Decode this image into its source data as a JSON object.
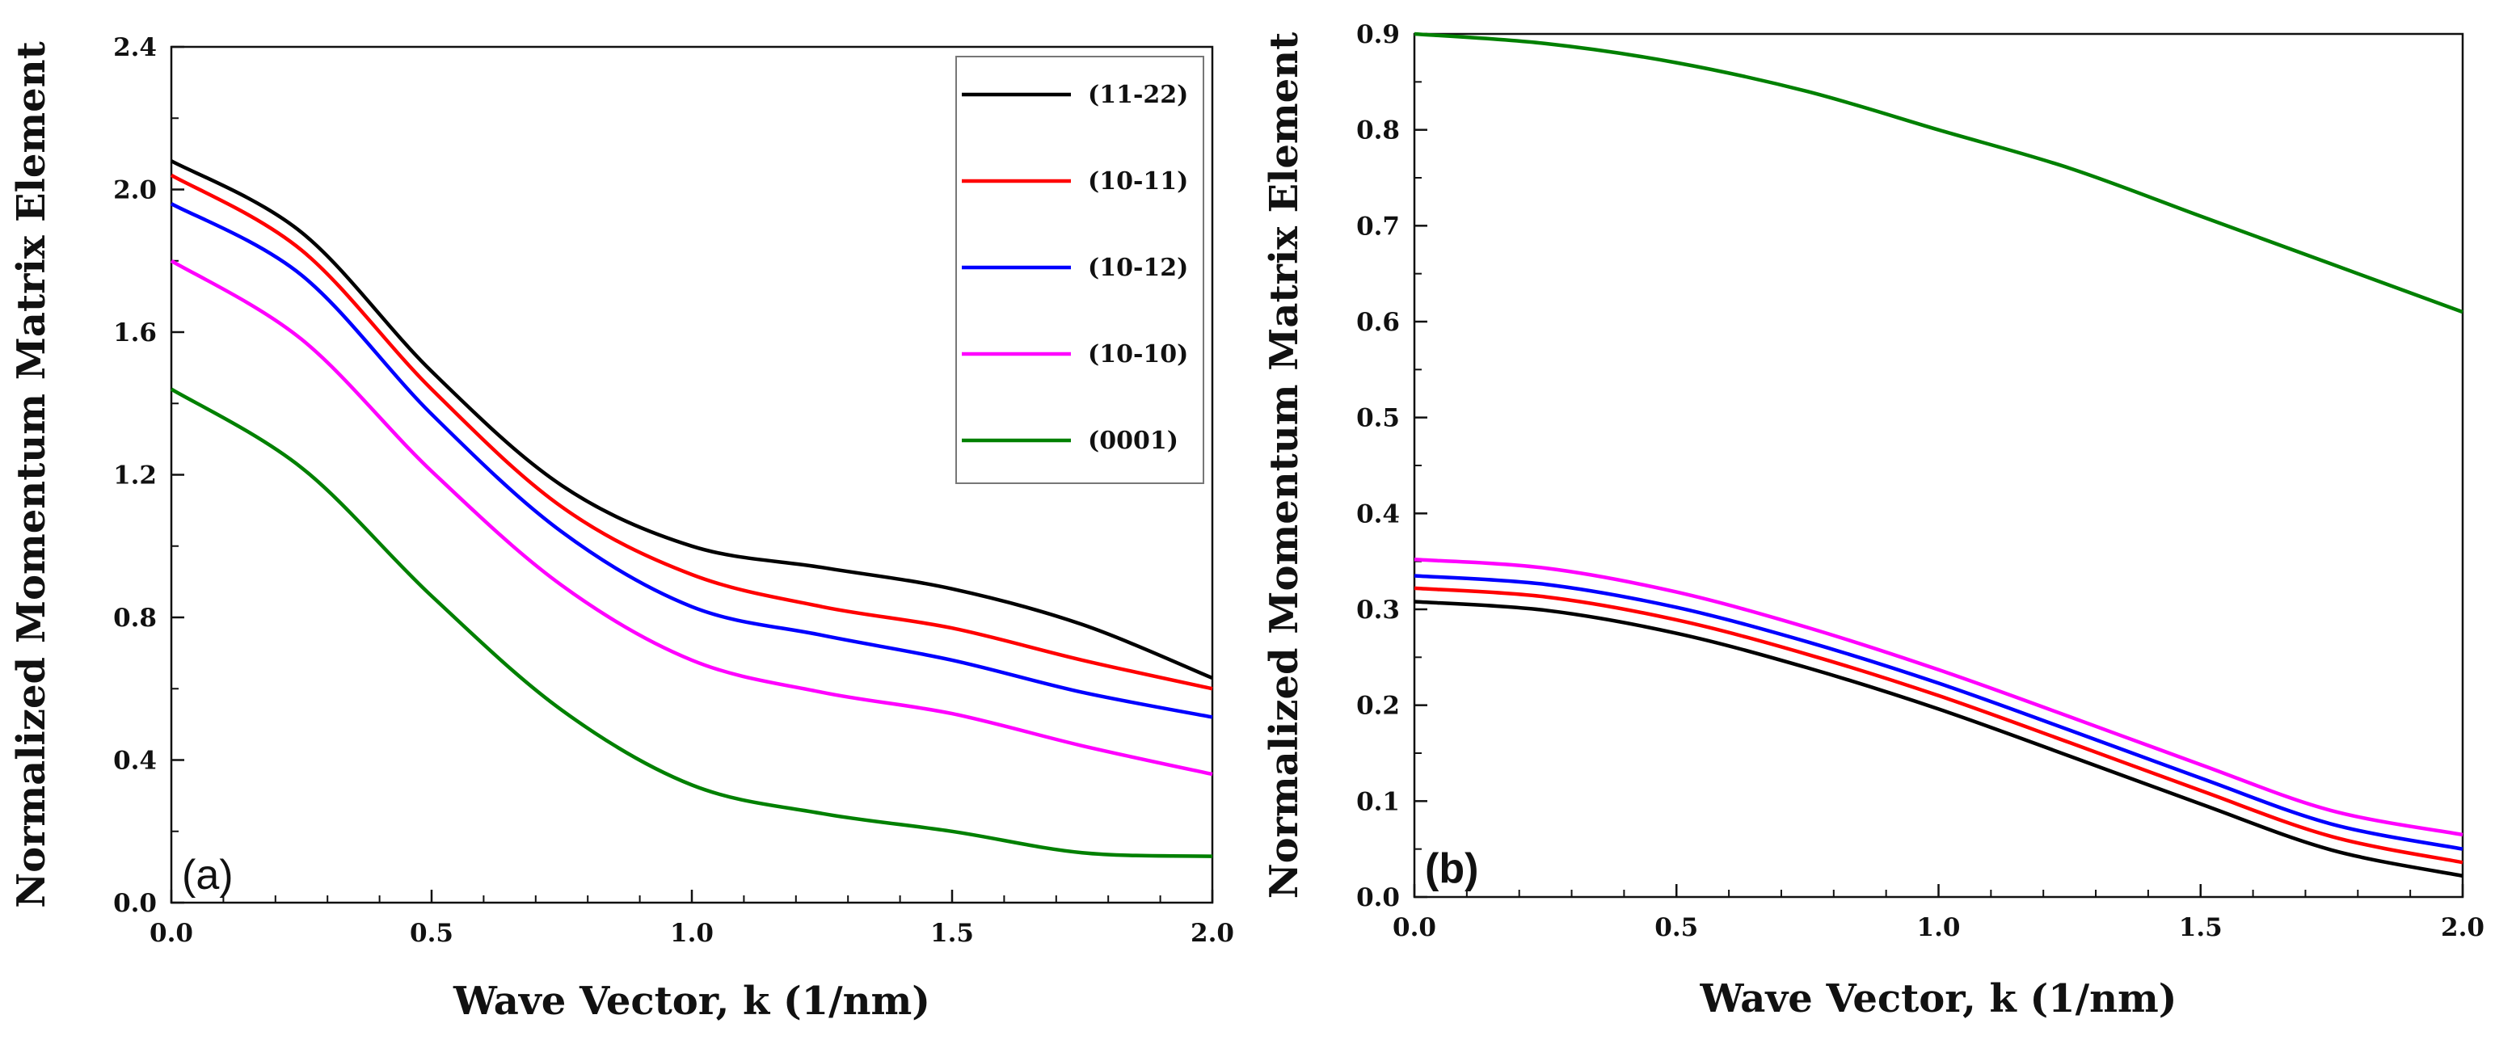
{
  "chart_data": [
    {
      "type": "line",
      "panel_label": "(a)",
      "xlabel": "Wave Vector, k (1/nm)",
      "ylabel": "Normalized Momentum Matrix Element",
      "xlim": [
        0,
        2
      ],
      "ylim": [
        0,
        2.4
      ],
      "xticks": [
        "0.0",
        "0.5",
        "1.0",
        "1.5",
        "2.0"
      ],
      "yticks": [
        "0.0",
        "0.4",
        "0.8",
        "1.2",
        "1.6",
        "2.0",
        "2.4"
      ],
      "legend_position": "top-right",
      "x": [
        0,
        0.25,
        0.5,
        0.75,
        1.0,
        1.25,
        1.5,
        1.75,
        2.0
      ],
      "series": [
        {
          "name": "(11-22)",
          "color": "#000000",
          "values": [
            2.08,
            1.88,
            1.49,
            1.17,
            1.0,
            0.94,
            0.88,
            0.78,
            0.63
          ]
        },
        {
          "name": "(10-11)",
          "color": "#ff0000",
          "values": [
            2.04,
            1.83,
            1.44,
            1.11,
            0.92,
            0.83,
            0.77,
            0.68,
            0.6
          ]
        },
        {
          "name": "(10-12)",
          "color": "#0000ff",
          "values": [
            1.96,
            1.76,
            1.37,
            1.04,
            0.83,
            0.75,
            0.68,
            0.59,
            0.52
          ]
        },
        {
          "name": "(10-10)",
          "color": "#ff00ff",
          "values": [
            1.8,
            1.58,
            1.21,
            0.89,
            0.68,
            0.59,
            0.53,
            0.44,
            0.36
          ]
        },
        {
          "name": "(0001)",
          "color": "#008000",
          "values": [
            1.44,
            1.22,
            0.86,
            0.54,
            0.33,
            0.25,
            0.2,
            0.14,
            0.13
          ]
        }
      ]
    },
    {
      "type": "line",
      "panel_label": "(b)",
      "xlabel": "Wave Vector, k (1/nm)",
      "ylabel": "Normalized Momentum Matrix Element",
      "xlim": [
        0,
        2
      ],
      "ylim": [
        0,
        0.9
      ],
      "xticks": [
        "0.0",
        "0.5",
        "1.0",
        "1.5",
        "2.0"
      ],
      "yticks": [
        "0.0",
        "0.1",
        "0.2",
        "0.3",
        "0.4",
        "0.5",
        "0.6",
        "0.7",
        "0.8",
        "0.9"
      ],
      "x": [
        0,
        0.25,
        0.5,
        0.75,
        1.0,
        1.25,
        1.5,
        1.75,
        2.0
      ],
      "series": [
        {
          "name": "(0001)",
          "color": "#008000",
          "values": [
            0.9,
            0.89,
            0.87,
            0.84,
            0.8,
            0.76,
            0.71,
            0.66,
            0.61
          ]
        },
        {
          "name": "(10-10)",
          "color": "#ff00ff",
          "values": [
            0.352,
            0.343,
            0.318,
            0.281,
            0.237,
            0.188,
            0.138,
            0.09,
            0.065
          ]
        },
        {
          "name": "(10-12)",
          "color": "#0000ff",
          "values": [
            0.335,
            0.326,
            0.302,
            0.266,
            0.223,
            0.174,
            0.124,
            0.076,
            0.05
          ]
        },
        {
          "name": "(10-11)",
          "color": "#ff0000",
          "values": [
            0.322,
            0.313,
            0.289,
            0.253,
            0.21,
            0.161,
            0.111,
            0.063,
            0.036
          ]
        },
        {
          "name": "(11-22)",
          "color": "#000000",
          "values": [
            0.308,
            0.299,
            0.275,
            0.239,
            0.196,
            0.147,
            0.097,
            0.049,
            0.022
          ]
        }
      ]
    }
  ]
}
